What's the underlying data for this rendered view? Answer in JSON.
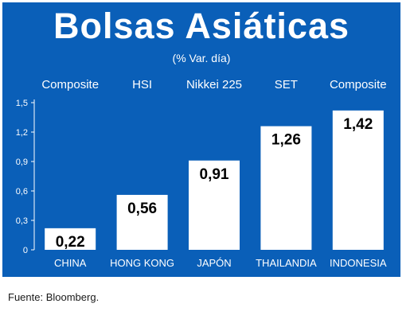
{
  "header": {
    "title": "Bolsas Asiáticas",
    "subtitle": "(% Var. día)"
  },
  "footer": {
    "source": "Fuente: Bloomberg."
  },
  "colors": {
    "background": "#0a5fb8",
    "bar": "#ffffff",
    "text_light": "#ffffff",
    "value_text": "#000000"
  },
  "chart_data": {
    "type": "bar",
    "title": "Bolsas Asiáticas",
    "subtitle": "(% Var. día)",
    "categories": [
      "CHINA",
      "HONG KONG",
      "JAPÓN",
      "THAILANDIA",
      "INDONESIA"
    ],
    "index_names": [
      "Composite",
      "HSI",
      "Nikkei 225",
      "SET",
      "Composite"
    ],
    "values": [
      0.22,
      0.56,
      0.91,
      1.26,
      1.42
    ],
    "value_labels": [
      "0,22",
      "0,56",
      "0,91",
      "1,26",
      "1,42"
    ],
    "yticks": [
      0,
      0.3,
      0.6,
      0.9,
      1.2,
      1.5
    ],
    "ytick_labels": [
      "0",
      "0,3",
      "0,6",
      "0,9",
      "1,2",
      "1,5"
    ],
    "ylim": [
      0,
      1.5
    ],
    "grid": false,
    "legend": "none",
    "xlabel": "",
    "ylabel": ""
  }
}
